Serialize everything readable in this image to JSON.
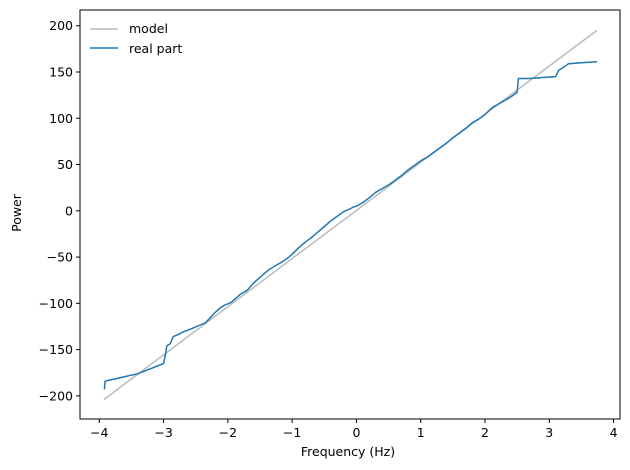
{
  "chart_data": {
    "type": "line",
    "title": "",
    "xlabel": "Frequency (Hz)",
    "ylabel": "Power",
    "xlim": [
      -4.3,
      4.1
    ],
    "ylim": [
      -225,
      217
    ],
    "xticks": [
      -4,
      -3,
      -2,
      -1,
      0,
      1,
      2,
      3,
      4
    ],
    "yticks": [
      -200,
      -150,
      -100,
      -50,
      0,
      50,
      100,
      150,
      200
    ],
    "grid": false,
    "legend_position": "top-left",
    "series": [
      {
        "name": "model",
        "color": "#bbbbbb",
        "x": [
          -3.93,
          3.74
        ],
        "y": [
          -204,
          195
        ]
      },
      {
        "name": "real part",
        "color": "#1f77b4",
        "x": [
          -3.92,
          -3.91,
          -3.4,
          -3.0,
          -2.97,
          -2.95,
          -2.9,
          -2.85,
          -2.78,
          -2.7,
          -2.55,
          -2.45,
          -2.35,
          -2.2,
          -2.1,
          -2.05,
          -1.95,
          -1.9,
          -1.8,
          -1.7,
          -1.6,
          -1.5,
          -1.45,
          -1.35,
          -1.25,
          -1.15,
          -1.05,
          -1.0,
          -0.9,
          -0.8,
          -0.7,
          -0.6,
          -0.5,
          -0.4,
          -0.3,
          -0.2,
          -0.1,
          -0.05,
          0.0,
          0.1,
          0.2,
          0.3,
          0.4,
          0.5,
          0.6,
          0.7,
          0.8,
          0.9,
          1.0,
          1.1,
          1.2,
          1.3,
          1.4,
          1.5,
          1.6,
          1.7,
          1.8,
          1.9,
          2.0,
          2.1,
          2.15,
          2.2,
          2.3,
          2.4,
          2.5,
          2.52,
          2.7,
          2.9,
          3.1,
          3.15,
          3.2,
          3.3,
          3.5,
          3.74
        ],
        "y": [
          -193,
          -184,
          -176,
          -165,
          -155,
          -146,
          -144,
          -136,
          -134,
          -131,
          -127,
          -124,
          -121,
          -110,
          -104,
          -102,
          -99,
          -96,
          -90,
          -86,
          -78,
          -72,
          -69,
          -63,
          -59,
          -55,
          -50,
          -47,
          -40,
          -34,
          -29,
          -23,
          -17,
          -11,
          -6,
          -1,
          2,
          4,
          5,
          9,
          14,
          20,
          24,
          28,
          33,
          38,
          44,
          49,
          54,
          58,
          63,
          68,
          73,
          79,
          84,
          89,
          95,
          99,
          104,
          111,
          113,
          115,
          119,
          123,
          128,
          143,
          143,
          144,
          145,
          152,
          154,
          159,
          160,
          161
        ]
      }
    ]
  }
}
